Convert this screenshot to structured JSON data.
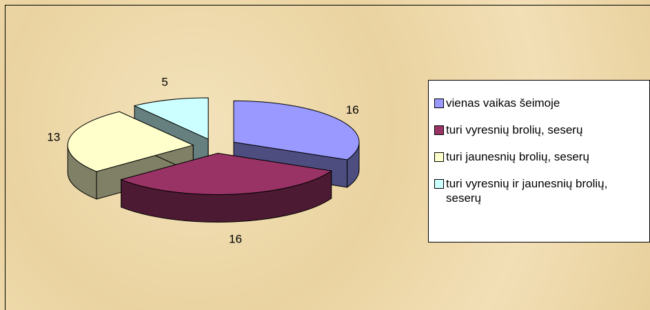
{
  "chart_data": {
    "type": "pie3d",
    "categories": [
      "vienas vaikas šeimoje",
      "turi vyresnių brolių, seserų",
      "turi jaunesnių brolių, seserų",
      "turi vyresnių ir jaunesnių brolių, seserų"
    ],
    "values": [
      16,
      16,
      13,
      5
    ],
    "colors": [
      "#9999ff",
      "#993366",
      "#ffffcc",
      "#ccffff"
    ],
    "legend": "right"
  }
}
